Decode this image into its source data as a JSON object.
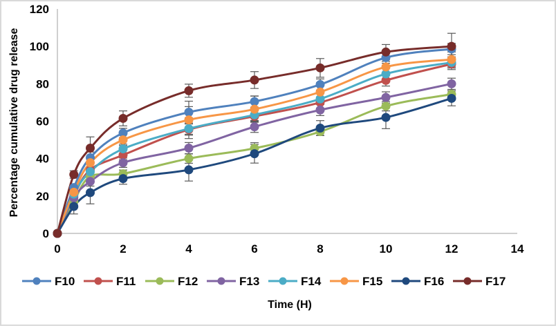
{
  "chart_data": {
    "type": "line",
    "title": "",
    "xlabel": "Time (H)",
    "ylabel": "Percentage cumulative drug release",
    "xlim": [
      0,
      14
    ],
    "ylim": [
      0,
      120
    ],
    "xticks": [
      0,
      2,
      4,
      6,
      8,
      10,
      12,
      14
    ],
    "yticks": [
      0,
      20,
      40,
      60,
      80,
      100,
      120
    ],
    "xtick_labels": [
      "0",
      "2",
      "4",
      "6",
      "8",
      "10",
      "12",
      "14"
    ],
    "ytick_labels": [
      "0",
      "20",
      "40",
      "60",
      "80",
      "100",
      "120"
    ],
    "grid": false,
    "legend_position": "bottom",
    "smooth": true,
    "error_bars": true,
    "x": [
      0,
      0.5,
      1,
      2,
      4,
      6,
      8,
      10,
      12
    ],
    "series": [
      {
        "name": "F10",
        "color": "#4f81bd",
        "values": [
          0,
          24.5,
          40.5,
          53.7,
          64.8,
          70.5,
          79.6,
          94.0,
          98.6
        ],
        "errors": [
          0,
          2,
          3,
          2.5,
          3,
          3,
          3,
          3,
          3
        ]
      },
      {
        "name": "F11",
        "color": "#c0504d",
        "values": [
          0,
          20.0,
          34.0,
          41.9,
          55.5,
          62.6,
          70.0,
          81.8,
          90.6
        ],
        "errors": [
          0,
          2,
          3,
          2.5,
          3,
          3,
          3,
          3,
          3
        ]
      },
      {
        "name": "F12",
        "color": "#9bbb59",
        "values": [
          0,
          17.0,
          30.4,
          31.9,
          40.0,
          45.5,
          54.4,
          68.0,
          74.4
        ],
        "errors": [
          0,
          2,
          2.5,
          2,
          2.5,
          3,
          2,
          2.5,
          2.5
        ]
      },
      {
        "name": "F13",
        "color": "#8064a2",
        "values": [
          0,
          19.0,
          27.8,
          37.8,
          45.6,
          57.0,
          66.0,
          72.7,
          80.0
        ],
        "errors": [
          0,
          2,
          2.5,
          2.5,
          3,
          3,
          3,
          3,
          3
        ]
      },
      {
        "name": "F14",
        "color": "#4bacc6",
        "values": [
          0,
          21.0,
          33.0,
          45.2,
          56.0,
          63.4,
          71.9,
          85.3,
          91.4
        ],
        "errors": [
          0,
          2,
          2.5,
          2.5,
          3,
          3,
          3,
          3,
          3
        ]
      },
      {
        "name": "F15",
        "color": "#f79646",
        "values": [
          0,
          22.0,
          37.8,
          50.0,
          60.7,
          66.4,
          75.6,
          89.0,
          93.0
        ],
        "errors": [
          0,
          2,
          2.5,
          3,
          10,
          7,
          5,
          3,
          4
        ]
      },
      {
        "name": "F16",
        "color": "#1f497d",
        "values": [
          0,
          14.4,
          21.8,
          29.3,
          34.0,
          42.6,
          56.3,
          62.0,
          72.2
        ],
        "errors": [
          0,
          4,
          6,
          3,
          6,
          5,
          4,
          6,
          4
        ]
      },
      {
        "name": "F17",
        "color": "#772c2a",
        "values": [
          0,
          31.5,
          45.6,
          61.5,
          76.3,
          82.0,
          88.5,
          97.0,
          100.0
        ],
        "errors": [
          0,
          2,
          6,
          4,
          3.5,
          4.5,
          5,
          4,
          7
        ]
      }
    ]
  }
}
